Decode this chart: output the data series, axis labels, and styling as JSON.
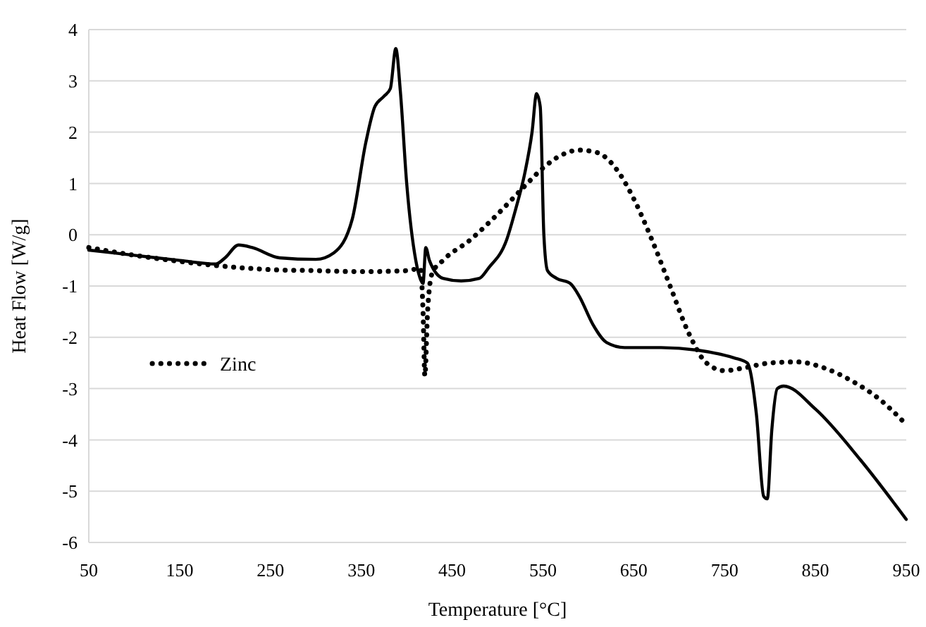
{
  "chart_data": {
    "type": "line",
    "xlabel": "Temperature [°C]",
    "ylabel": "Heat Flow [W/g]",
    "xlim": [
      50,
      950
    ],
    "xticks": [
      50,
      150,
      250,
      350,
      450,
      550,
      650,
      750,
      850,
      950
    ],
    "ylim": [
      -6,
      4
    ],
    "yticks": [
      -6,
      -5,
      -4,
      -3,
      -2,
      -1,
      0,
      1,
      2,
      3,
      4
    ],
    "grid": "y",
    "legend": "left",
    "series": [
      {
        "name": "Zinc",
        "color": "#000000",
        "line_style": "dotted",
        "x": [
          50,
          100,
          150,
          190,
          250,
          300,
          350,
          400,
          415,
          418,
          420,
          423,
          428,
          440,
          470,
          500,
          530,
          550,
          570,
          590,
          610,
          630,
          650,
          670,
          690,
          710,
          730,
          750,
          770,
          800,
          830,
          860,
          890,
          920,
          950
        ],
        "values": [
          -0.25,
          -0.4,
          -0.52,
          -0.6,
          -0.68,
          -0.7,
          -0.72,
          -0.7,
          -0.66,
          -1.5,
          -2.75,
          -1.5,
          -0.75,
          -0.5,
          -0.1,
          0.4,
          0.95,
          1.3,
          1.55,
          1.65,
          1.6,
          1.3,
          0.7,
          -0.1,
          -1.0,
          -1.9,
          -2.5,
          -2.65,
          -2.6,
          -2.5,
          -2.48,
          -2.6,
          -2.85,
          -3.2,
          -3.7
        ]
      },
      {
        "color": "#000000",
        "line_style": "solid",
        "x": [
          50,
          100,
          150,
          190,
          200,
          215,
          230,
          260,
          300,
          320,
          340,
          355,
          365,
          375,
          382,
          388,
          393,
          400,
          410,
          416,
          418,
          421,
          425,
          440,
          460,
          480,
          490,
          510,
          520,
          530,
          538,
          543,
          547,
          551,
          555,
          565,
          580,
          590,
          605,
          620,
          640,
          680,
          720,
          760,
          775,
          785,
          793,
          797,
          802,
          808,
          815,
          850,
          900,
          950
        ],
        "values": [
          -0.3,
          -0.4,
          -0.5,
          -0.57,
          -0.45,
          -0.2,
          -0.25,
          -0.45,
          -0.48,
          -0.35,
          0.3,
          1.8,
          2.5,
          2.7,
          2.85,
          3.63,
          2.8,
          1.0,
          -0.5,
          -0.9,
          -0.95,
          -0.25,
          -0.5,
          -0.85,
          -0.9,
          -0.85,
          -0.65,
          -0.1,
          0.5,
          1.2,
          2.0,
          2.75,
          2.5,
          0,
          -0.7,
          -0.85,
          -0.95,
          -1.2,
          -1.75,
          -2.1,
          -2.2,
          -2.2,
          -2.25,
          -2.4,
          -2.5,
          -3.5,
          -5.1,
          -5.15,
          -3.8,
          -3.0,
          -2.95,
          -3.4,
          -4.4,
          -5.55
        ]
      }
    ]
  }
}
